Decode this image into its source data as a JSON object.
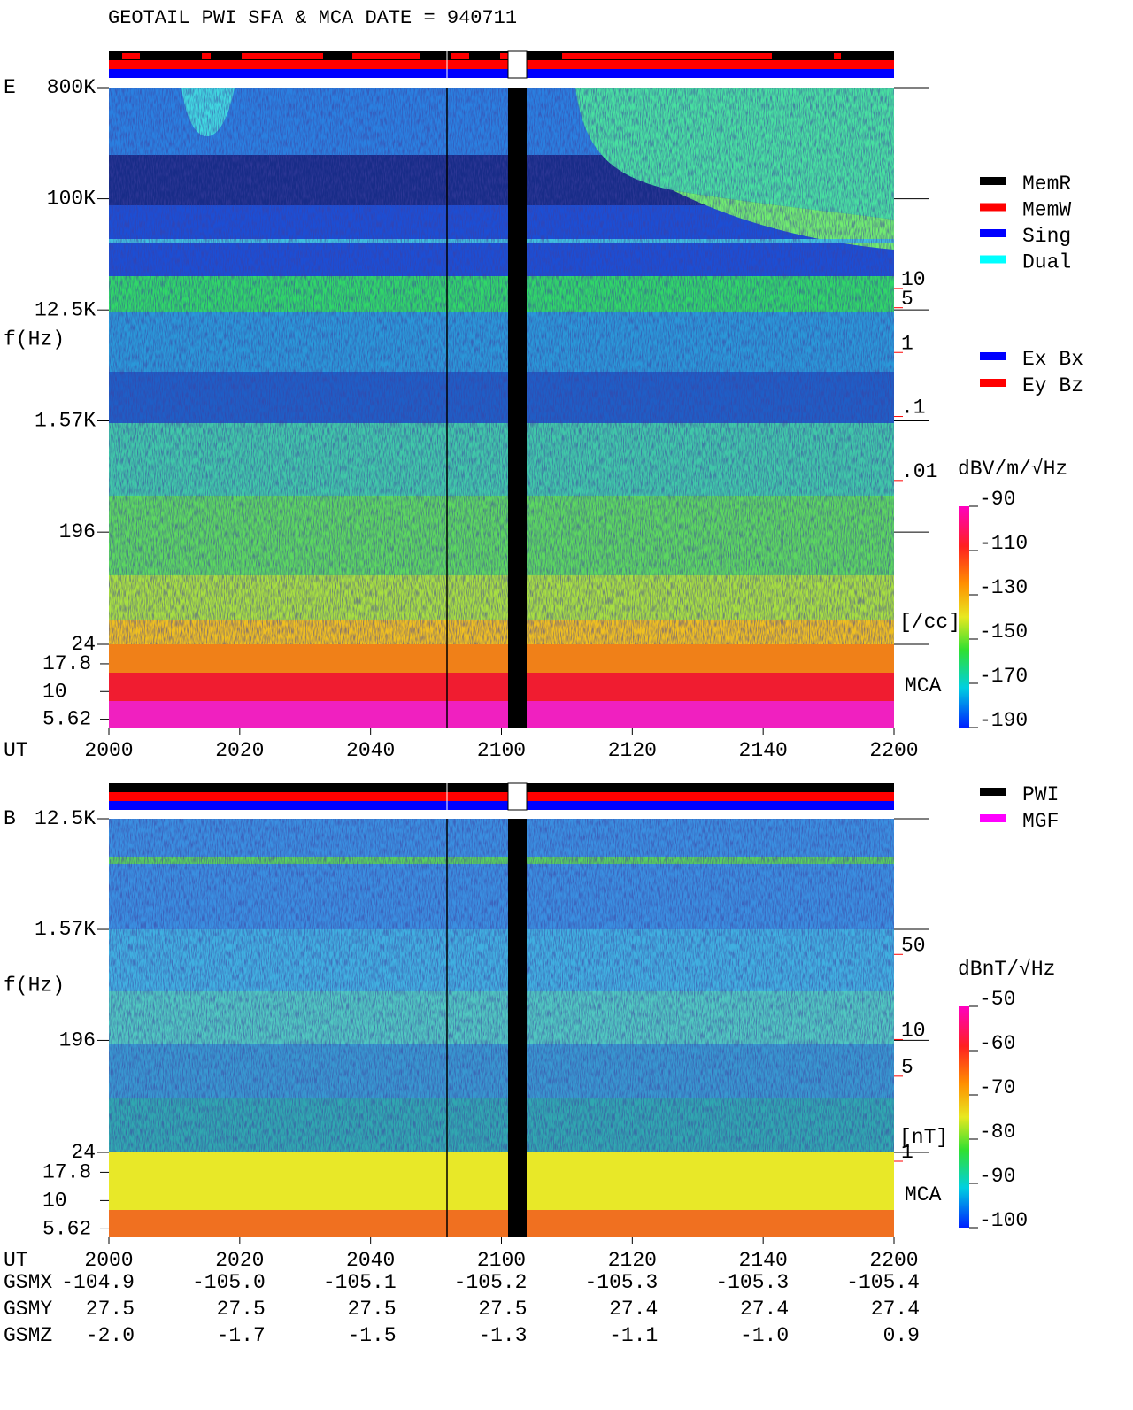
{
  "header": {
    "title": "GEOTAIL  PWI SFA & MCA   DATE = 940711"
  },
  "legend": {
    "modes": [
      {
        "name": "MemR",
        "color": "#000000"
      },
      {
        "name": "MemW",
        "color": "#ff0000"
      },
      {
        "name": "Sing",
        "color": "#0000ff"
      },
      {
        "name": "Dual",
        "color": "#00ffff"
      }
    ],
    "components": [
      {
        "name": "Ex Bx",
        "color": "#0000ff"
      },
      {
        "name": "Ey Bz",
        "color": "#ff0000"
      }
    ],
    "sources": [
      {
        "name": "PWI",
        "color": "#000000"
      },
      {
        "name": "MGF",
        "color": "#ff00ff"
      }
    ]
  },
  "chart_data": [
    {
      "type": "spectrogram",
      "panel": "E",
      "y_label": "f(Hz)",
      "x_label": "UT",
      "yscale": "log",
      "ylim": [
        24,
        800000
      ],
      "yticks": [
        {
          "value": 800000,
          "label": "800K"
        },
        {
          "value": 100000,
          "label": "100K"
        },
        {
          "value": 12500,
          "label": "12.5K"
        },
        {
          "value": 1570,
          "label": "1.57K"
        },
        196,
        24
      ],
      "mca_label": "MCA",
      "mca_ticks": [
        17.8,
        10,
        5.62
      ],
      "xticks": [
        "2000",
        "2020",
        "2040",
        "2100",
        "2120",
        "2140",
        "2200"
      ],
      "y2scale": "log",
      "y2lim": [
        2e-05,
        10000
      ],
      "y2ticks": [
        10,
        5,
        1,
        {
          "value": 0.1,
          "label": ".1"
        },
        {
          "value": 0.01,
          "label": ".01"
        }
      ],
      "y2_label": "[/cc]",
      "y2color": "#ff0000",
      "colorbar": {
        "label": "dBV/m/√Hz",
        "lim": [
          -190,
          -90
        ],
        "ticks": [
          -90,
          -110,
          -130,
          -150,
          -170,
          -190
        ]
      }
    },
    {
      "type": "spectrogram",
      "panel": "B",
      "y_label": "f(Hz)",
      "x_label": "UT",
      "yscale": "log",
      "ylim": [
        24,
        12500
      ],
      "yticks": [
        {
          "value": 12500,
          "label": "12.5K"
        },
        {
          "value": 1570,
          "label": "1.57K"
        },
        196,
        24
      ],
      "mca_label": "MCA",
      "mca_ticks": [
        17.8,
        10,
        5.62
      ],
      "xticks": [
        "2000",
        "2020",
        "2040",
        "2100",
        "2120",
        "2140",
        "2200"
      ],
      "y2scale": "log",
      "y2lim": [
        1,
        550
      ],
      "y2ticks": [
        50,
        10,
        5,
        1
      ],
      "y2_label": "[nT]",
      "y2color": "#ff0000",
      "colorbar": {
        "label": "dBnT/√Hz",
        "lim": [
          -100,
          -50
        ],
        "ticks": [
          -50,
          -60,
          -70,
          -80,
          -90,
          -100
        ]
      }
    }
  ],
  "orbit": {
    "rows": [
      {
        "name": "GSMX",
        "cells": [
          "-104.9",
          "-105.0",
          "-105.1",
          "-105.2",
          "-105.3",
          "-105.3",
          "-105.4"
        ]
      },
      {
        "name": "GSMY",
        "cells": [
          "27.5",
          "27.5",
          "27.5",
          "27.5",
          "27.4",
          "27.4",
          "27.4"
        ]
      },
      {
        "name": "GSMZ",
        "cells": [
          "-2.0",
          "-1.7",
          "-1.5",
          "-1.3",
          "-1.1",
          "-1.0",
          "0.9"
        ]
      }
    ]
  }
}
